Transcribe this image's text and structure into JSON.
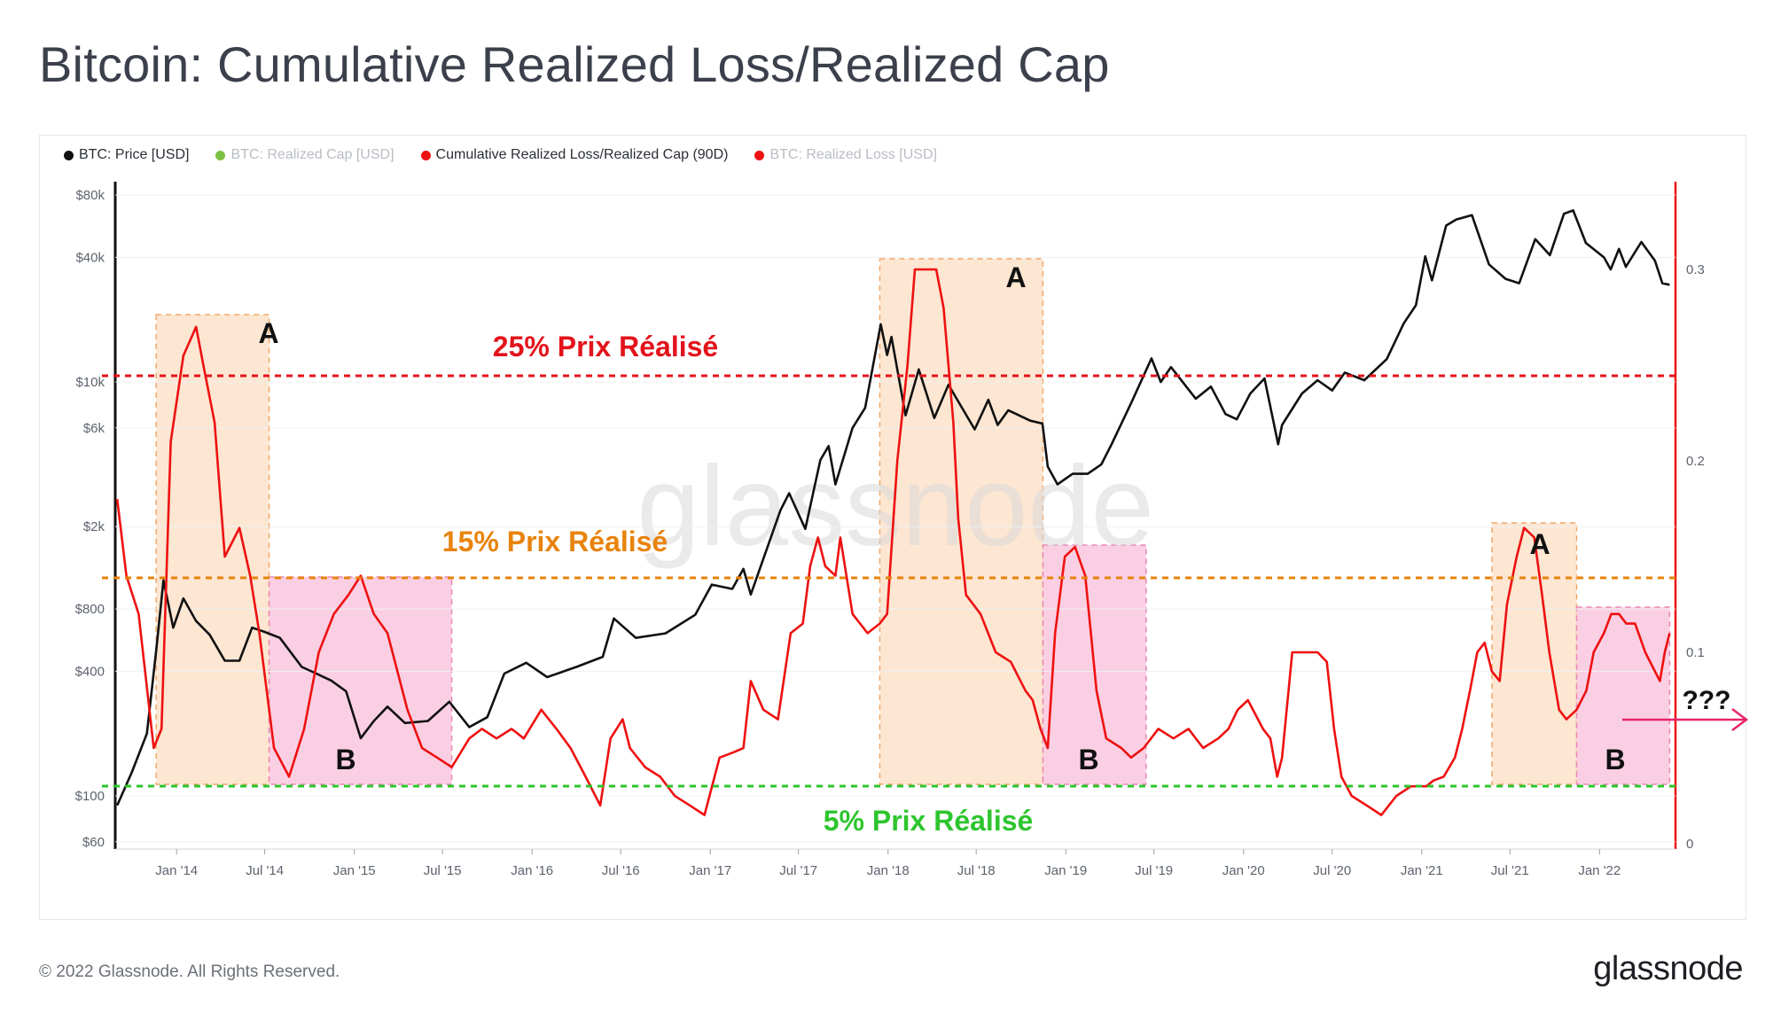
{
  "title": "Bitcoin: Cumulative Realized Loss/Realized Cap",
  "legend": [
    {
      "label": "BTC: Price [USD]",
      "color": "#111111",
      "muted": false
    },
    {
      "label": "BTC: Realized Cap [USD]",
      "color": "#7cc142",
      "muted": true
    },
    {
      "label": "Cumulative Realized Loss/Realized Cap (90D)",
      "color": "#ee1111",
      "muted": false
    },
    {
      "label": "BTC: Realized Loss [USD]",
      "color": "#ee1111",
      "muted": true
    }
  ],
  "watermark": "glassnode",
  "footer": "© 2022 Glassnode. All Rights Reserved.",
  "brand": "glassnode",
  "colors": {
    "price": "#111111",
    "ratio": "#ee1111",
    "zone_a": "#fde6d2",
    "zone_b": "#fbcfe3",
    "line25": "#e3131b",
    "line15": "#e8830c",
    "line5": "#2dc52d",
    "arrow": "#e8246a"
  },
  "chart_data": {
    "type": "line",
    "x_axis_labels": [
      "Jan '14",
      "Jul '14",
      "Jan '15",
      "Jul '15",
      "Jan '16",
      "Jul '16",
      "Jan '17",
      "Jul '17",
      "Jan '18",
      "Jul '18",
      "Jan '19",
      "Jul '19",
      "Jan '20",
      "Jul '20",
      "Jan '21",
      "Jul '21",
      "Jan '22"
    ],
    "left_axis": {
      "scale": "log",
      "ticks": [
        "$60",
        "$100",
        "$400",
        "$800",
        "$2k",
        "$6k",
        "$10k",
        "$40k",
        "$80k"
      ]
    },
    "right_axis": {
      "scale": "linear",
      "ticks": [
        "0",
        "0.1",
        "0.2",
        "0.3"
      ]
    },
    "series": [
      {
        "name": "BTC: Price [USD]",
        "axis": "left",
        "points": [
          [
            "2013-09-01",
            90
          ],
          [
            "2013-10-01",
            130
          ],
          [
            "2013-11-01",
            200
          ],
          [
            "2013-11-20",
            500
          ],
          [
            "2013-12-05",
            1100
          ],
          [
            "2013-12-25",
            650
          ],
          [
            "2014-01-15",
            900
          ],
          [
            "2014-02-10",
            700
          ],
          [
            "2014-03-10",
            600
          ],
          [
            "2014-04-10",
            450
          ],
          [
            "2014-05-10",
            450
          ],
          [
            "2014-06-05",
            650
          ],
          [
            "2014-07-01",
            620
          ],
          [
            "2014-08-01",
            580
          ],
          [
            "2014-09-15",
            420
          ],
          [
            "2014-10-15",
            390
          ],
          [
            "2014-11-15",
            360
          ],
          [
            "2014-12-15",
            320
          ],
          [
            "2015-01-14",
            190
          ],
          [
            "2015-02-10",
            230
          ],
          [
            "2015-03-10",
            270
          ],
          [
            "2015-04-15",
            225
          ],
          [
            "2015-06-01",
            230
          ],
          [
            "2015-07-15",
            285
          ],
          [
            "2015-08-25",
            215
          ],
          [
            "2015-10-01",
            240
          ],
          [
            "2015-11-05",
            390
          ],
          [
            "2015-12-20",
            440
          ],
          [
            "2016-02-01",
            375
          ],
          [
            "2016-04-01",
            420
          ],
          [
            "2016-05-25",
            470
          ],
          [
            "2016-06-17",
            720
          ],
          [
            "2016-08-01",
            580
          ],
          [
            "2016-10-01",
            610
          ],
          [
            "2016-12-01",
            750
          ],
          [
            "2017-01-04",
            1050
          ],
          [
            "2017-02-15",
            1000
          ],
          [
            "2017-03-10",
            1250
          ],
          [
            "2017-03-25",
            940
          ],
          [
            "2017-05-25",
            2400
          ],
          [
            "2017-06-12",
            2900
          ],
          [
            "2017-07-15",
            1950
          ],
          [
            "2017-08-15",
            4200
          ],
          [
            "2017-09-01",
            4900
          ],
          [
            "2017-09-15",
            3200
          ],
          [
            "2017-10-20",
            6000
          ],
          [
            "2017-11-15",
            7500
          ],
          [
            "2017-12-17",
            19000
          ],
          [
            "2017-12-30",
            13500
          ],
          [
            "2018-01-08",
            16500
          ],
          [
            "2018-02-06",
            6900
          ],
          [
            "2018-03-05",
            11500
          ],
          [
            "2018-04-06",
            6700
          ],
          [
            "2018-05-05",
            9700
          ],
          [
            "2018-06-28",
            5900
          ],
          [
            "2018-07-26",
            8200
          ],
          [
            "2018-08-14",
            6200
          ],
          [
            "2018-09-05",
            7300
          ],
          [
            "2018-10-20",
            6500
          ],
          [
            "2018-11-14",
            6300
          ],
          [
            "2018-11-25",
            3900
          ],
          [
            "2018-12-15",
            3200
          ],
          [
            "2019-01-15",
            3600
          ],
          [
            "2019-02-15",
            3600
          ],
          [
            "2019-03-15",
            4000
          ],
          [
            "2019-04-05",
            5000
          ],
          [
            "2019-05-15",
            7900
          ],
          [
            "2019-06-26",
            13000
          ],
          [
            "2019-07-15",
            10000
          ],
          [
            "2019-08-05",
            11800
          ],
          [
            "2019-09-25",
            8300
          ],
          [
            "2019-10-26",
            9500
          ],
          [
            "2019-11-25",
            7000
          ],
          [
            "2019-12-18",
            6600
          ],
          [
            "2020-01-15",
            8800
          ],
          [
            "2020-02-13",
            10400
          ],
          [
            "2020-03-12",
            5000
          ],
          [
            "2020-03-20",
            6200
          ],
          [
            "2020-04-30",
            8800
          ],
          [
            "2020-06-01",
            10200
          ],
          [
            "2020-07-01",
            9100
          ],
          [
            "2020-07-27",
            11100
          ],
          [
            "2020-09-05",
            10200
          ],
          [
            "2020-10-21",
            12900
          ],
          [
            "2020-11-25",
            19200
          ],
          [
            "2020-12-20",
            23500
          ],
          [
            "2021-01-08",
            40500
          ],
          [
            "2021-01-22",
            31000
          ],
          [
            "2021-02-20",
            57000
          ],
          [
            "2021-03-13",
            61000
          ],
          [
            "2021-04-14",
            64000
          ],
          [
            "2021-05-19",
            37000
          ],
          [
            "2021-06-22",
            31500
          ],
          [
            "2021-07-20",
            30000
          ],
          [
            "2021-08-22",
            49000
          ],
          [
            "2021-09-21",
            41000
          ],
          [
            "2021-10-20",
            65000
          ],
          [
            "2021-11-08",
            67500
          ],
          [
            "2021-12-04",
            47000
          ],
          [
            "2022-01-10",
            40000
          ],
          [
            "2022-01-24",
            35000
          ],
          [
            "2022-02-10",
            44000
          ],
          [
            "2022-02-24",
            36000
          ],
          [
            "2022-03-28",
            47500
          ],
          [
            "2022-04-25",
            38500
          ],
          [
            "2022-05-10",
            30000
          ],
          [
            "2022-05-25",
            29500
          ]
        ]
      },
      {
        "name": "Cumulative Realized Loss/Realized Cap (90D)",
        "axis": "right",
        "points": [
          [
            "2013-09-01",
            0.18
          ],
          [
            "2013-09-20",
            0.14
          ],
          [
            "2013-10-15",
            0.12
          ],
          [
            "2013-11-15",
            0.05
          ],
          [
            "2013-12-01",
            0.06
          ],
          [
            "2013-12-20",
            0.21
          ],
          [
            "2014-01-15",
            0.255
          ],
          [
            "2014-02-10",
            0.27
          ],
          [
            "2014-02-25",
            0.25
          ],
          [
            "2014-03-20",
            0.22
          ],
          [
            "2014-04-10",
            0.15
          ],
          [
            "2014-05-10",
            0.165
          ],
          [
            "2014-06-01",
            0.14
          ],
          [
            "2014-06-20",
            0.11
          ],
          [
            "2014-07-20",
            0.05
          ],
          [
            "2014-08-20",
            0.035
          ],
          [
            "2014-09-20",
            0.06
          ],
          [
            "2014-10-20",
            0.1
          ],
          [
            "2014-11-20",
            0.12
          ],
          [
            "2014-12-20",
            0.13
          ],
          [
            "2015-01-14",
            0.14
          ],
          [
            "2015-02-10",
            0.12
          ],
          [
            "2015-03-10",
            0.11
          ],
          [
            "2015-04-20",
            0.07
          ],
          [
            "2015-05-20",
            0.05
          ],
          [
            "2015-06-20",
            0.045
          ],
          [
            "2015-07-20",
            0.04
          ],
          [
            "2015-08-25",
            0.055
          ],
          [
            "2015-09-20",
            0.06
          ],
          [
            "2015-10-20",
            0.055
          ],
          [
            "2015-11-20",
            0.06
          ],
          [
            "2015-12-15",
            0.055
          ],
          [
            "2016-01-20",
            0.07
          ],
          [
            "2016-02-20",
            0.06
          ],
          [
            "2016-03-20",
            0.05
          ],
          [
            "2016-04-20",
            0.035
          ],
          [
            "2016-05-20",
            0.02
          ],
          [
            "2016-06-10",
            0.055
          ],
          [
            "2016-07-05",
            0.065
          ],
          [
            "2016-07-20",
            0.05
          ],
          [
            "2016-08-20",
            0.04
          ],
          [
            "2016-09-20",
            0.035
          ],
          [
            "2016-10-20",
            0.025
          ],
          [
            "2016-11-20",
            0.02
          ],
          [
            "2016-12-20",
            0.015
          ],
          [
            "2017-01-20",
            0.045
          ],
          [
            "2017-02-20",
            0.048
          ],
          [
            "2017-03-10",
            0.05
          ],
          [
            "2017-03-25",
            0.085
          ],
          [
            "2017-04-20",
            0.07
          ],
          [
            "2017-05-20",
            0.065
          ],
          [
            "2017-06-15",
            0.11
          ],
          [
            "2017-07-10",
            0.115
          ],
          [
            "2017-07-25",
            0.145
          ],
          [
            "2017-08-10",
            0.16
          ],
          [
            "2017-08-25",
            0.145
          ],
          [
            "2017-09-15",
            0.14
          ],
          [
            "2017-09-25",
            0.16
          ],
          [
            "2017-10-20",
            0.12
          ],
          [
            "2017-11-20",
            0.11
          ],
          [
            "2017-12-15",
            0.115
          ],
          [
            "2017-12-30",
            0.12
          ],
          [
            "2018-01-20",
            0.2
          ],
          [
            "2018-02-10",
            0.25
          ],
          [
            "2018-02-25",
            0.3
          ],
          [
            "2018-03-20",
            0.3
          ],
          [
            "2018-04-10",
            0.3
          ],
          [
            "2018-04-25",
            0.28
          ],
          [
            "2018-05-15",
            0.22
          ],
          [
            "2018-05-25",
            0.17
          ],
          [
            "2018-06-10",
            0.13
          ],
          [
            "2018-07-10",
            0.12
          ],
          [
            "2018-08-10",
            0.1
          ],
          [
            "2018-09-10",
            0.095
          ],
          [
            "2018-10-10",
            0.08
          ],
          [
            "2018-10-25",
            0.075
          ],
          [
            "2018-11-10",
            0.06
          ],
          [
            "2018-11-25",
            0.05
          ],
          [
            "2018-12-10",
            0.11
          ],
          [
            "2018-12-30",
            0.15
          ],
          [
            "2019-01-20",
            0.155
          ],
          [
            "2019-02-10",
            0.14
          ],
          [
            "2019-03-05",
            0.08
          ],
          [
            "2019-03-25",
            0.055
          ],
          [
            "2019-04-25",
            0.05
          ],
          [
            "2019-05-15",
            0.045
          ],
          [
            "2019-06-10",
            0.05
          ],
          [
            "2019-07-10",
            0.06
          ],
          [
            "2019-08-10",
            0.055
          ],
          [
            "2019-09-10",
            0.06
          ],
          [
            "2019-10-10",
            0.05
          ],
          [
            "2019-11-10",
            0.055
          ],
          [
            "2019-12-01",
            0.06
          ],
          [
            "2019-12-20",
            0.07
          ],
          [
            "2020-01-10",
            0.075
          ],
          [
            "2020-02-10",
            0.06
          ],
          [
            "2020-02-25",
            0.055
          ],
          [
            "2020-03-10",
            0.035
          ],
          [
            "2020-03-20",
            0.045
          ],
          [
            "2020-04-10",
            0.1
          ],
          [
            "2020-05-10",
            0.1
          ],
          [
            "2020-06-01",
            0.1
          ],
          [
            "2020-06-20",
            0.095
          ],
          [
            "2020-07-05",
            0.06
          ],
          [
            "2020-07-20",
            0.035
          ],
          [
            "2020-08-10",
            0.025
          ],
          [
            "2020-09-10",
            0.02
          ],
          [
            "2020-10-10",
            0.015
          ],
          [
            "2020-11-10",
            0.025
          ],
          [
            "2020-12-10",
            0.03
          ],
          [
            "2021-01-10",
            0.03
          ],
          [
            "2021-01-25",
            0.033
          ],
          [
            "2021-02-15",
            0.035
          ],
          [
            "2021-03-10",
            0.045
          ],
          [
            "2021-03-25",
            0.06
          ],
          [
            "2021-04-10",
            0.08
          ],
          [
            "2021-04-25",
            0.1
          ],
          [
            "2021-05-10",
            0.105
          ],
          [
            "2021-05-25",
            0.09
          ],
          [
            "2021-06-10",
            0.085
          ],
          [
            "2021-06-25",
            0.125
          ],
          [
            "2021-07-15",
            0.15
          ],
          [
            "2021-07-30",
            0.165
          ],
          [
            "2021-08-20",
            0.16
          ],
          [
            "2021-09-05",
            0.13
          ],
          [
            "2021-09-20",
            0.1
          ],
          [
            "2021-10-10",
            0.07
          ],
          [
            "2021-10-25",
            0.065
          ],
          [
            "2021-11-15",
            0.07
          ],
          [
            "2021-12-05",
            0.08
          ],
          [
            "2021-12-20",
            0.1
          ],
          [
            "2022-01-10",
            0.11
          ],
          [
            "2022-01-25",
            0.12
          ],
          [
            "2022-02-10",
            0.12
          ],
          [
            "2022-02-25",
            0.115
          ],
          [
            "2022-03-15",
            0.115
          ],
          [
            "2022-04-05",
            0.1
          ],
          [
            "2022-04-25",
            0.09
          ],
          [
            "2022-05-05",
            0.085
          ],
          [
            "2022-05-15",
            0.1
          ],
          [
            "2022-05-25",
            0.11
          ]
        ]
      }
    ],
    "zones": [
      {
        "label": "A",
        "type": "A",
        "start": "2013-11-20",
        "end": "2014-07-10"
      },
      {
        "label": "B",
        "type": "B",
        "start": "2014-07-10",
        "end": "2015-07-20"
      },
      {
        "label": "A",
        "type": "A",
        "start": "2017-12-15",
        "end": "2018-11-15"
      },
      {
        "label": "B",
        "type": "B",
        "start": "2018-11-15",
        "end": "2019-06-15"
      },
      {
        "label": "A",
        "type": "A",
        "start": "2021-05-25",
        "end": "2021-11-15"
      },
      {
        "label": "B",
        "type": "B",
        "start": "2021-11-15",
        "end": "2022-05-25"
      }
    ],
    "reference_lines": [
      {
        "label": "25% Prix Réalisé",
        "color": "#e3131b",
        "level": "25%"
      },
      {
        "label": "15% Prix Réalisé",
        "color": "#e8830c",
        "level": "15%"
      },
      {
        "label": "5% Prix Réalisé",
        "color": "#2dc52d",
        "level": "5%"
      }
    ],
    "question": "???"
  }
}
